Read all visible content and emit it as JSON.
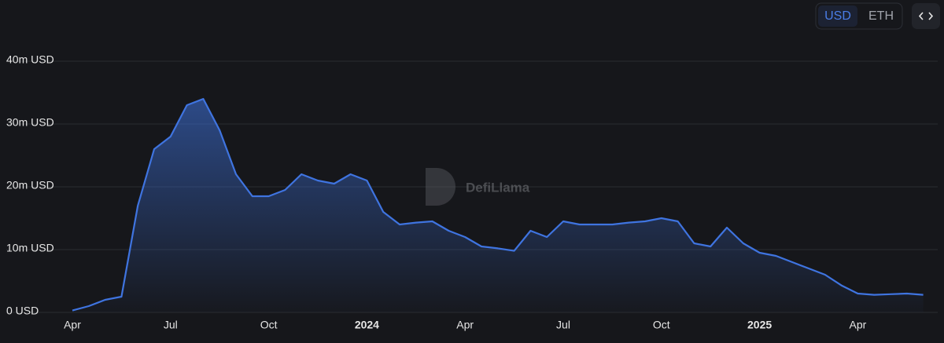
{
  "currency_options": [
    "USD",
    "ETH"
  ],
  "watermark": "DefiLlama",
  "chart_data": {
    "type": "area",
    "color": "#3f74e0",
    "categories": [
      "Apr",
      null,
      null,
      null,
      null,
      null,
      "Jul",
      null,
      null,
      null,
      null,
      null,
      "Oct",
      null,
      null,
      null,
      null,
      null,
      "2024",
      null,
      null,
      null,
      null,
      null,
      "Apr",
      null,
      null,
      null,
      null,
      null,
      "Jul",
      null,
      null,
      null,
      null,
      null,
      "Oct",
      null,
      null,
      null,
      null,
      null,
      "2025",
      null,
      null,
      null,
      null,
      null,
      "Apr",
      null,
      null,
      null,
      null
    ],
    "values": [
      300000,
      1000000,
      2000000,
      2500000,
      17000000,
      26000000,
      28000000,
      33000000,
      34000000,
      29000000,
      22000000,
      18500000,
      18500000,
      19500000,
      22000000,
      21000000,
      20500000,
      22000000,
      21000000,
      16000000,
      14000000,
      14300000,
      14500000,
      13000000,
      12000000,
      10500000,
      10200000,
      9800000,
      13000000,
      12000000,
      14500000,
      14000000,
      14000000,
      14000000,
      14300000,
      14500000,
      15000000,
      14500000,
      11000000,
      10500000,
      13500000,
      11000000,
      9500000,
      9000000,
      8000000,
      7000000,
      6000000,
      4300000,
      3000000,
      2800000,
      2900000,
      3000000,
      2800000
    ],
    "ylim": [
      0,
      40000000
    ],
    "yticks": [
      {
        "value": 0,
        "label": "0 USD"
      },
      {
        "value": 10000000,
        "label": "10m USD"
      },
      {
        "value": 20000000,
        "label": "20m USD"
      },
      {
        "value": 30000000,
        "label": "30m USD"
      },
      {
        "value": 40000000,
        "label": "40m USD"
      }
    ],
    "grid": true
  }
}
